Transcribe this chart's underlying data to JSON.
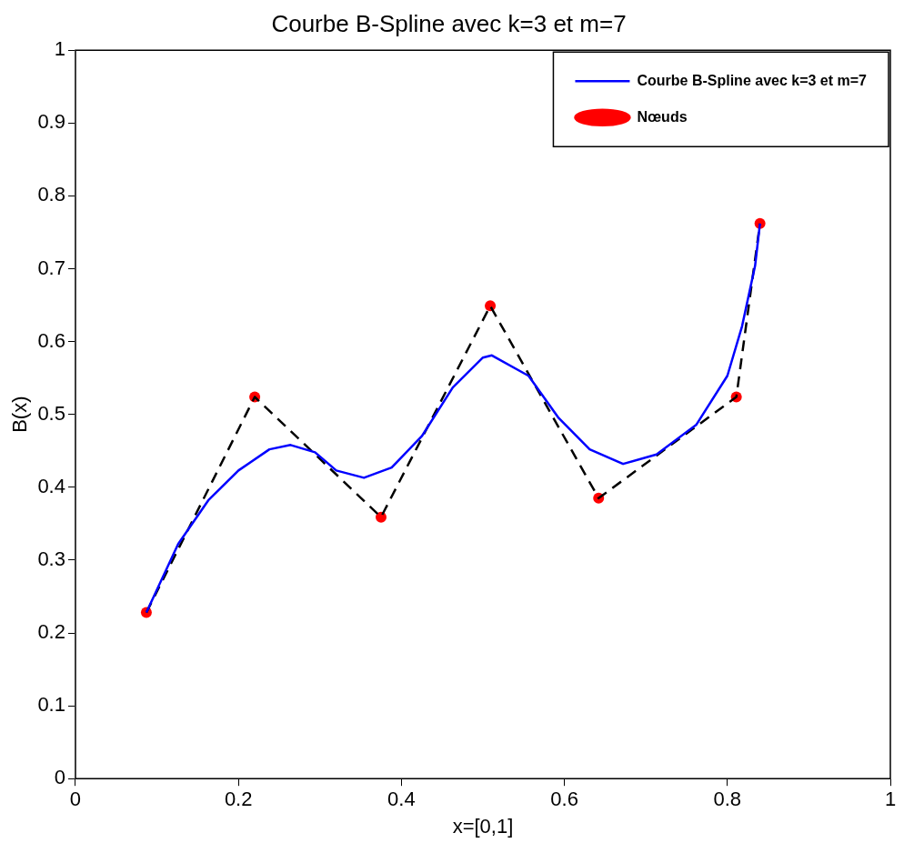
{
  "chart_data": {
    "type": "line",
    "title": "Courbe B-Spline avec k=3 et m=7",
    "xlabel": "x=[0,1]",
    "ylabel": "B(x)",
    "xlim": [
      0,
      1
    ],
    "xticks": [
      0,
      0.2,
      0.4,
      0.6,
      0.8,
      1
    ],
    "ylim": [
      0,
      1
    ],
    "yticks": [
      0,
      0.1,
      0.2,
      0.3,
      0.4,
      0.5,
      0.6,
      0.7,
      0.8,
      0.9,
      1
    ],
    "grid": false,
    "legend": "top right",
    "series": [
      {
        "name": "Courbe B-Spline avec k=3 et m=7",
        "type": "line",
        "color": "#0000ff",
        "marker": "none",
        "line_style": "solid",
        "x": [
          0.087,
          0.126,
          0.163,
          0.2,
          0.238,
          0.264,
          0.294,
          0.32,
          0.354,
          0.388,
          0.425,
          0.463,
          0.5,
          0.511,
          0.556,
          0.593,
          0.631,
          0.672,
          0.713,
          0.762,
          0.8,
          0.818,
          0.834,
          0.84
        ],
        "values": [
          0.228,
          0.322,
          0.382,
          0.423,
          0.452,
          0.458,
          0.448,
          0.423,
          0.413,
          0.427,
          0.47,
          0.537,
          0.578,
          0.581,
          0.553,
          0.495,
          0.452,
          0.432,
          0.445,
          0.486,
          0.553,
          0.621,
          0.704,
          0.762
        ]
      },
      {
        "type": "line",
        "color": "#000000",
        "marker": "none",
        "line_style": "dashed",
        "x": [
          0.087,
          0.22,
          0.375,
          0.509,
          0.642,
          0.811,
          0.84
        ],
        "values": [
          0.228,
          0.524,
          0.359,
          0.649,
          0.385,
          0.524,
          0.762
        ]
      },
      {
        "name": "Nœuds",
        "type": "scatter",
        "color": "#ff0000",
        "marker": "circle",
        "x": [
          0.087,
          0.22,
          0.375,
          0.509,
          0.642,
          0.811,
          0.84
        ],
        "values": [
          0.228,
          0.524,
          0.359,
          0.649,
          0.385,
          0.524,
          0.762
        ]
      }
    ]
  }
}
